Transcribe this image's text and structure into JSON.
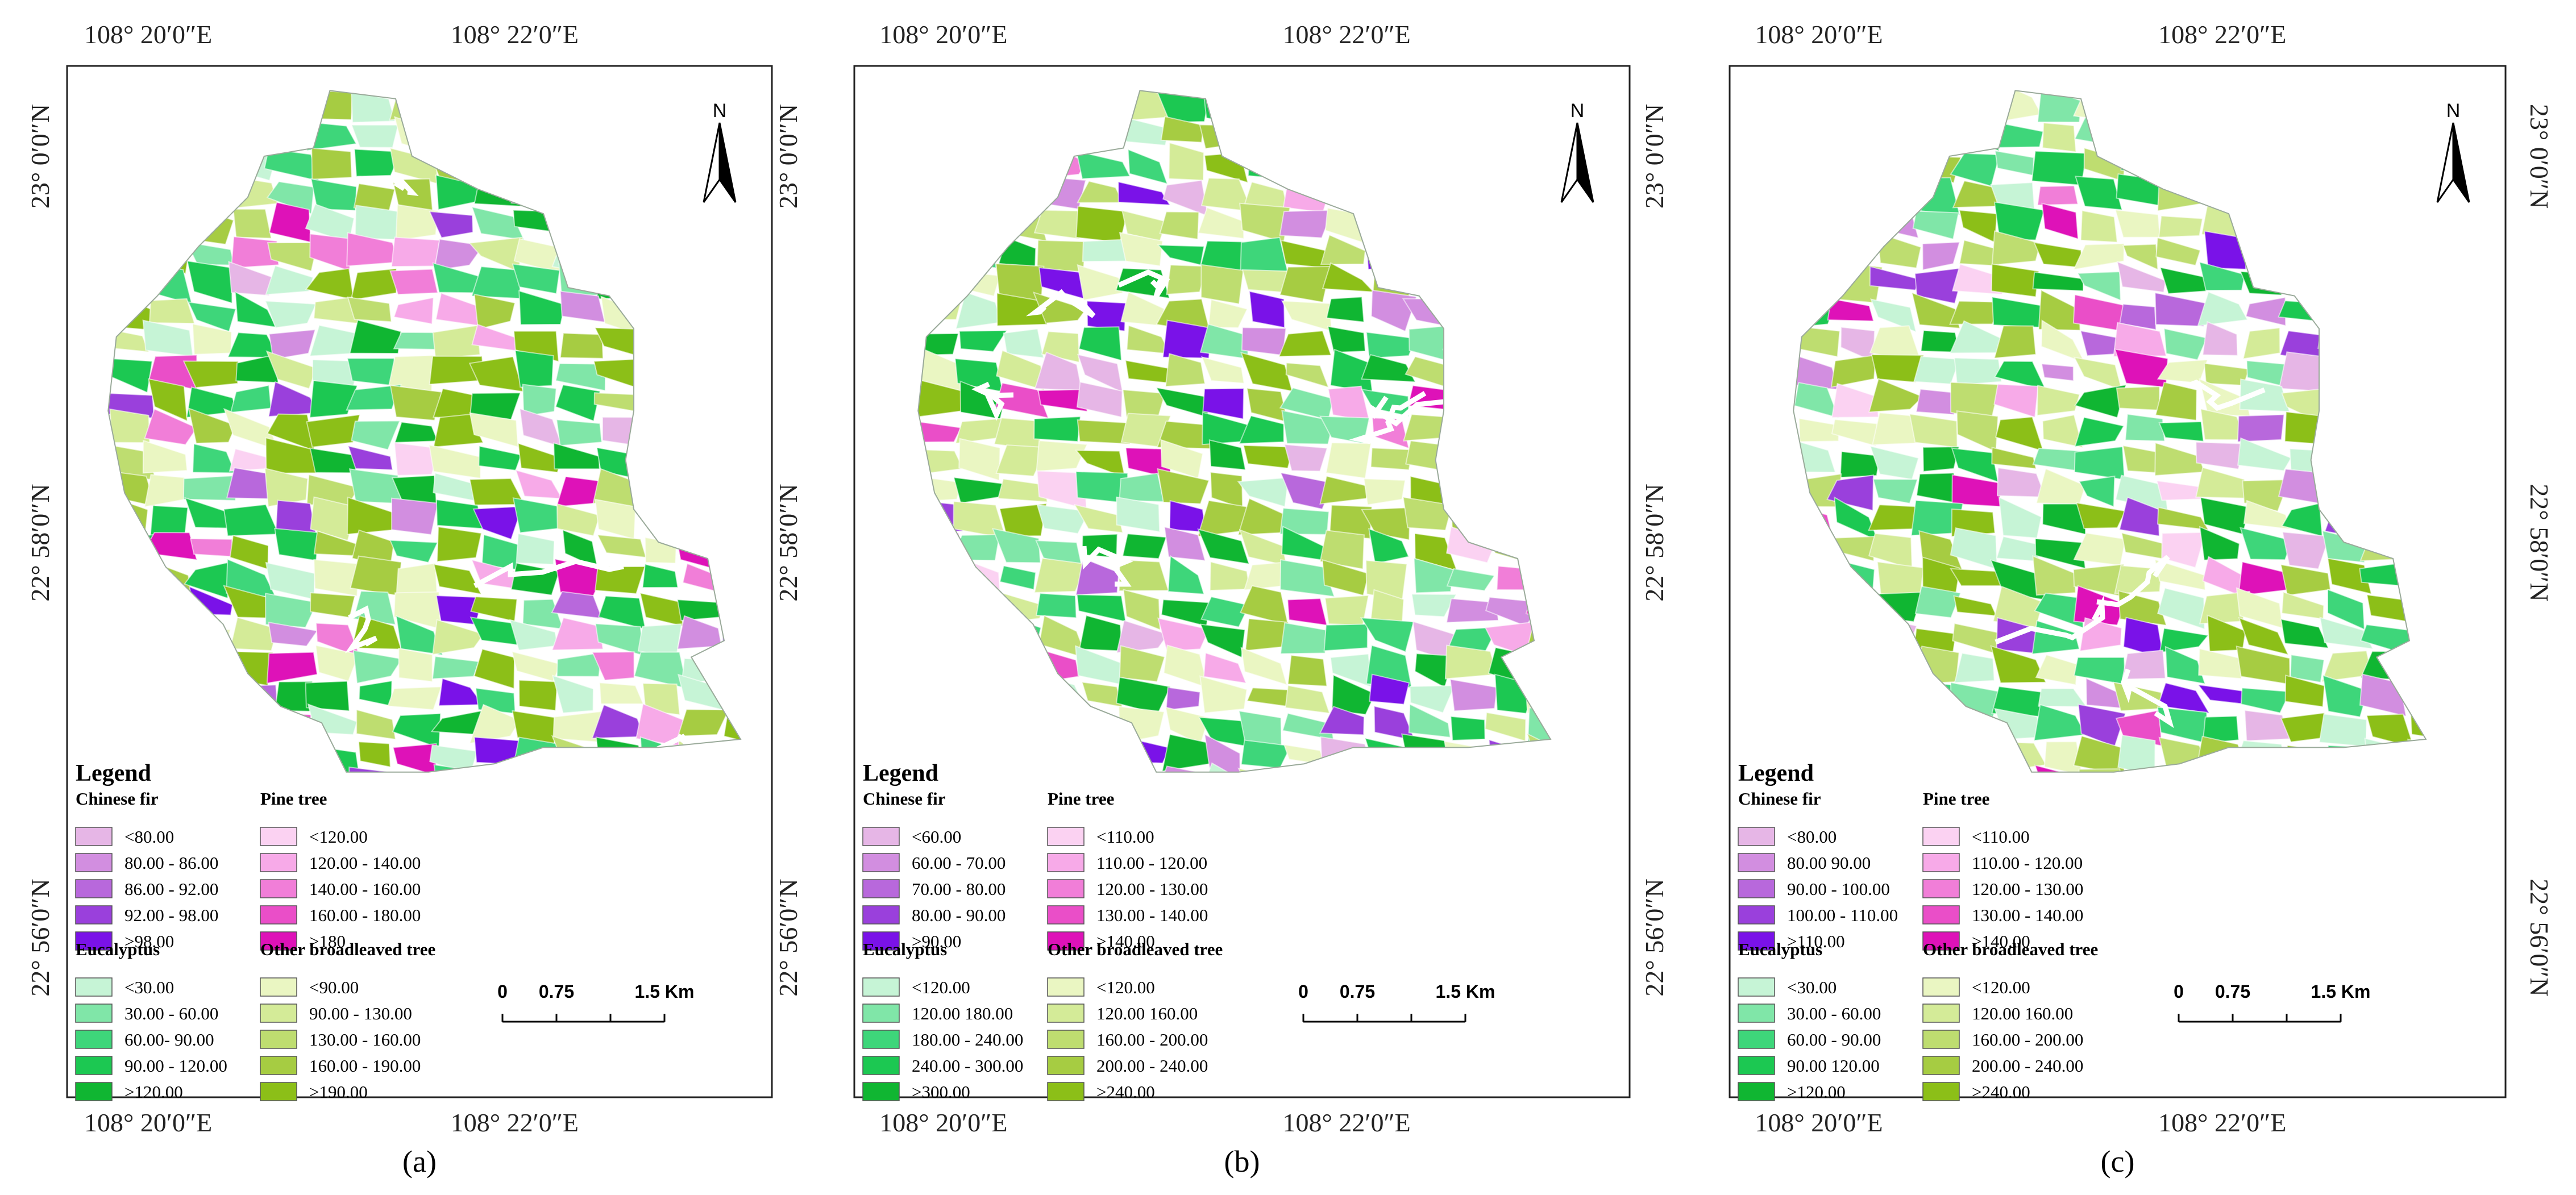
{
  "panels": [
    {
      "label": "(a)",
      "top_labels": [
        "108° 20′0″E",
        "108° 22′0″E"
      ],
      "bottom_labels": [
        "108° 20′0″E",
        "108° 22′0″E"
      ],
      "left_labels": [
        "23° 0′0″N",
        "22° 58′0″N",
        "22° 56′0″N"
      ],
      "north": "N",
      "legend_title": "Legend",
      "groups": [
        {
          "name": "Chinese fir",
          "colors": [
            "#e6b6e6",
            "#d28ee0",
            "#b868dc",
            "#9a40dc",
            "#7a12e8"
          ],
          "items": [
            "<80.00",
            "80.00 - 86.00",
            "86.00 - 92.00",
            "92.00 - 98.00",
            ">98.00"
          ]
        },
        {
          "name": "Pine tree",
          "colors": [
            "#fbd2f2",
            "#f7aae8",
            "#f17ed8",
            "#ea4ec8",
            "#de12b8"
          ],
          "items": [
            "<120.00",
            "120.00 - 140.00",
            "140.00 - 160.00",
            "160.00 - 180.00",
            ">180"
          ]
        },
        {
          "name": "Eucalyptus",
          "colors": [
            "#c6f4d6",
            "#80e6a8",
            "#3ed67a",
            "#1cc852",
            "#10b632"
          ],
          "items": [
            "<30.00",
            "30.00 - 60.00",
            "60.00- 90.00",
            "90.00 - 120.00",
            ">120.00"
          ]
        },
        {
          "name": "Other broadleaved tree",
          "colors": [
            "#eaf6c2",
            "#d4eb98",
            "#bedd70",
            "#a6cc42",
            "#8cbf18"
          ],
          "items": [
            "<90.00",
            "90.00 - 130.00",
            "130.00 - 160.00",
            "160.00 - 190.00",
            ">190.00"
          ]
        }
      ],
      "scale_labels": [
        "0",
        "0.75",
        "1.5 Km"
      ]
    },
    {
      "label": "(b)",
      "top_labels": [
        "108° 20′0″E",
        "108° 22′0″E"
      ],
      "bottom_labels": [
        "108° 20′0″E",
        "108° 22′0″E"
      ],
      "left_labels": [
        "23° 0′0″N",
        "22° 58′0″N",
        "22° 56′0″N"
      ],
      "north": "N",
      "legend_title": "Legend",
      "groups": [
        {
          "name": "Chinese fir",
          "colors": [
            "#e6b6e6",
            "#d28ee0",
            "#b868dc",
            "#9a40dc",
            "#7a12e8"
          ],
          "items": [
            "<60.00",
            "60.00 - 70.00",
            "70.00 - 80.00",
            "80.00 - 90.00",
            ">90.00"
          ]
        },
        {
          "name": "Pine tree",
          "colors": [
            "#fbd2f2",
            "#f7aae8",
            "#f17ed8",
            "#ea4ec8",
            "#de12b8"
          ],
          "items": [
            "<110.00",
            "110.00 - 120.00",
            "120.00 - 130.00",
            "130.00 - 140.00",
            ">140.00"
          ]
        },
        {
          "name": "Eucalyptus",
          "colors": [
            "#c6f4d6",
            "#80e6a8",
            "#3ed67a",
            "#1cc852",
            "#10b632"
          ],
          "items": [
            "<120.00",
            "120.00   180.00",
            "180.00 - 240.00",
            "240.00 - 300.00",
            ">300.00"
          ]
        },
        {
          "name": "Other broadleaved tree",
          "colors": [
            "#eaf6c2",
            "#d4eb98",
            "#bedd70",
            "#a6cc42",
            "#8cbf18"
          ],
          "items": [
            "<120.00",
            "120.00   160.00",
            "160.00 - 200.00",
            "200.00 - 240.00",
            ">240.00"
          ]
        }
      ],
      "scale_labels": [
        "0",
        "0.75",
        "1.5 Km"
      ]
    },
    {
      "label": "(c)",
      "top_labels": [
        "108° 20′0″E",
        "108° 22′0″E"
      ],
      "bottom_labels": [
        "108° 20′0″E",
        "108° 22′0″E"
      ],
      "left_labels": [
        "23° 0′0″N",
        "22° 58′0″N",
        "22° 56′0″N"
      ],
      "right_labels": [
        "23° 0′0″N",
        "22° 58′0″N",
        "22° 56′0″N"
      ],
      "north": "N",
      "legend_title": "Legend",
      "groups": [
        {
          "name": "Chinese fir",
          "colors": [
            "#e6b6e6",
            "#d28ee0",
            "#b868dc",
            "#9a40dc",
            "#7a12e8"
          ],
          "items": [
            "<80.00",
            "80.00   90.00",
            "90.00 - 100.00",
            "100.00 - 110.00",
            ">110.00"
          ]
        },
        {
          "name": "Pine tree",
          "colors": [
            "#fbd2f2",
            "#f7aae8",
            "#f17ed8",
            "#ea4ec8",
            "#de12b8"
          ],
          "items": [
            "<110.00",
            "110.00 - 120.00",
            "120.00 - 130.00",
            "130.00 - 140.00",
            ">140.00"
          ]
        },
        {
          "name": "Eucalyptus",
          "colors": [
            "#c6f4d6",
            "#80e6a8",
            "#3ed67a",
            "#1cc852",
            "#10b632"
          ],
          "items": [
            "<30.00",
            "30.00 - 60.00",
            "60.00 - 90.00",
            "90.00   120.00",
            ">120.00"
          ]
        },
        {
          "name": "Other broadleaved tree",
          "colors": [
            "#eaf6c2",
            "#d4eb98",
            "#bedd70",
            "#a6cc42",
            "#8cbf18"
          ],
          "items": [
            "<120.00",
            "120.00   160.00",
            "160.00 - 200.00",
            "200.00 - 240.00",
            ">240.00"
          ]
        }
      ],
      "scale_labels": [
        "0",
        "0.75",
        "1.5 Km"
      ]
    }
  ]
}
